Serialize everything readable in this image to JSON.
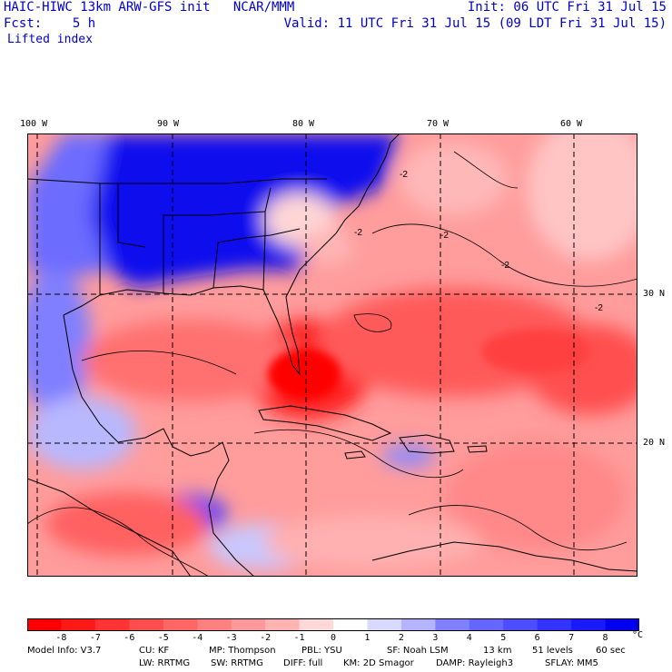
{
  "header": {
    "title": "HAIC-HIWC 13km ARW-GFS init   NCAR/MMM",
    "fcst": "Fcst:    5 h",
    "field": "Lifted index",
    "init": "Init: 06 UTC Fri 31 Jul 15",
    "valid": "Valid: 11 UTC Fri 31 Jul 15 (09 LDT Fri 31 Jul 15)"
  },
  "map": {
    "lon_labels": [
      "100 W",
      "90 W",
      "80 W",
      "70 W",
      "60 W"
    ],
    "lat_labels": [
      "30 N",
      "20 N"
    ],
    "contour_labels": [
      "-2",
      "-2",
      "-2",
      "-2",
      "-2"
    ]
  },
  "colorbar": {
    "labels": [
      "-8",
      "-7",
      "-6",
      "-5",
      "-4",
      "-3",
      "-2",
      "-1",
      "0",
      "1",
      "2",
      "3",
      "4",
      "5",
      "6",
      "7",
      "8"
    ],
    "unit": "°C",
    "colors": [
      "#ff0000",
      "#ff1a1a",
      "#ff3333",
      "#ff4d4d",
      "#ff6666",
      "#ff8080",
      "#ff9999",
      "#ffb3b3",
      "#ffd9d9",
      "#ffffff",
      "#d9d9ff",
      "#b3b3ff",
      "#8080ff",
      "#6666ff",
      "#4d4dff",
      "#3333ff",
      "#1a1aff",
      "#0000ee"
    ]
  },
  "footer": {
    "line1": {
      "model": "Model Info: V3.7",
      "cu": "CU: KF",
      "mp": "MP: Thompson",
      "pbl": "PBL: YSU",
      "sf": "SF: Noah LSM",
      "res": "13 km",
      "levels": "51 levels",
      "dt": "60 sec"
    },
    "line2": {
      "lw": "LW: RRTMG",
      "sw": "SW: RRTMG",
      "diff": "DIFF: full",
      "km": "KM: 2D Smagor",
      "damp": "DAMP: Rayleigh3",
      "sflay": "SFLAY: MM5"
    }
  }
}
